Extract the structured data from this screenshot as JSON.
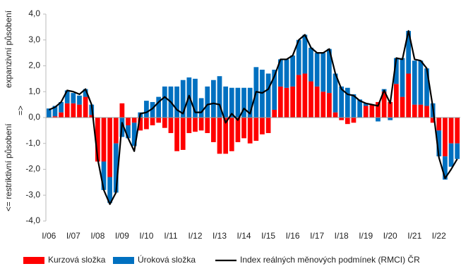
{
  "chart_data": {
    "type": "stacked-bar-line",
    "ylabel_parts": [
      "<= restriktivní působení",
      "=>",
      "expanzivní působení"
    ],
    "categories": [
      "I/06",
      null,
      null,
      null,
      "I/07",
      null,
      null,
      null,
      "I/08",
      null,
      null,
      null,
      "I/09",
      null,
      null,
      null,
      "I/10",
      null,
      null,
      null,
      "I/11",
      null,
      null,
      null,
      "I/12",
      null,
      null,
      null,
      "I/13",
      null,
      null,
      null,
      "I/14",
      null,
      null,
      null,
      "I/15",
      null,
      null,
      null,
      "I/16",
      null,
      null,
      null,
      "I/17",
      null,
      null,
      null,
      "I/18",
      null,
      null,
      null,
      "I/19",
      null,
      null,
      null,
      "I/20",
      null,
      null,
      null,
      "I/21",
      null,
      null,
      null,
      "I/22",
      null,
      null,
      null
    ],
    "series": [
      {
        "name": "Kurzová složka",
        "color": "#ff0000",
        "kind": "bar",
        "values": [
          0,
          0.05,
          0.2,
          0.55,
          0.55,
          0.5,
          0.8,
          0.1,
          -1.7,
          -1.7,
          -2.3,
          -1.0,
          0.55,
          -0.3,
          -0.2,
          -0.5,
          -0.45,
          -0.3,
          -0.2,
          -0.4,
          -0.6,
          -1.3,
          -1.25,
          -0.6,
          -0.55,
          -0.5,
          -0.6,
          -0.95,
          -1.4,
          -1.4,
          -1.3,
          -0.95,
          -0.8,
          -1.0,
          -0.9,
          -0.65,
          -0.6,
          0.3,
          1.2,
          1.15,
          1.2,
          1.65,
          1.7,
          1.4,
          1.2,
          1.0,
          0.95,
          0.2,
          -0.1,
          -0.25,
          -0.2,
          0,
          0.45,
          0.5,
          0.6,
          1.0,
          0.6,
          1.3,
          0.8,
          1.7,
          0.5,
          0.5,
          0.45,
          -0.2,
          -0.5,
          -1.5,
          -1.0,
          -1.0
        ]
      },
      {
        "name": "Úroková složka",
        "color": "#0070c0",
        "kind": "bar",
        "values": [
          0.35,
          0.4,
          0.4,
          0.5,
          0.4,
          0.35,
          0.3,
          0.4,
          0,
          -1.1,
          -1.0,
          -1.9,
          -0.75,
          -0.5,
          -0.9,
          0.2,
          0.65,
          0.6,
          0.8,
          1.2,
          1.2,
          1.2,
          1.45,
          1.55,
          1.5,
          0.75,
          1.2,
          1.45,
          1.6,
          1.2,
          1.15,
          1.15,
          1.15,
          1.15,
          1.95,
          1.85,
          1.7,
          1.55,
          1.05,
          1.1,
          1.2,
          1.35,
          1.5,
          1.3,
          1.3,
          1.5,
          1.7,
          1.5,
          1.2,
          1.15,
          0.9,
          0.7,
          0.1,
          0,
          -0.15,
          0.1,
          -0.1,
          1.0,
          1.5,
          1.65,
          1.7,
          1.7,
          1.45,
          0.55,
          -1.0,
          -0.9,
          -0.9,
          -0.6
        ]
      },
      {
        "name": "Index reálných měnových podmínek (RMCI) ČR",
        "color": "#000000",
        "kind": "line",
        "values": [
          0.3,
          0.4,
          0.6,
          1.05,
          1.0,
          0.9,
          1.1,
          0.5,
          -1.6,
          -2.8,
          -3.35,
          -2.9,
          -0.2,
          -0.8,
          -1.3,
          0.15,
          0.2,
          0.35,
          0.6,
          0.8,
          0.6,
          0.3,
          0.15,
          0.85,
          0.2,
          0.2,
          0.5,
          0.55,
          0.5,
          -0.2,
          0.15,
          -0.1,
          0.35,
          0.15,
          1.0,
          0.95,
          1.1,
          1.6,
          2.25,
          2.25,
          2.4,
          3.0,
          3.2,
          2.7,
          2.5,
          2.5,
          2.65,
          1.7,
          1.1,
          0.9,
          0.85,
          0.65,
          0.55,
          0.5,
          0.45,
          1.05,
          0.55,
          2.3,
          2.25,
          3.35,
          2.25,
          2.2,
          1.9,
          0.4,
          -1.55,
          -2.35,
          -2.0,
          -1.6
        ]
      }
    ],
    "ylim": [
      -4,
      4
    ],
    "yticks": [
      {
        "value": -4,
        "label": "-4,0"
      },
      {
        "value": -3,
        "label": "-3,0"
      },
      {
        "value": -2,
        "label": "-2,0"
      },
      {
        "value": -1,
        "label": "-1,0"
      },
      {
        "value": 0,
        "label": "0,0"
      },
      {
        "value": 1,
        "label": "1,0"
      },
      {
        "value": 2,
        "label": "2,0"
      },
      {
        "value": 3,
        "label": "3,0"
      },
      {
        "value": 4,
        "label": "4,0"
      }
    ],
    "grid": false,
    "legend": "bottom"
  }
}
